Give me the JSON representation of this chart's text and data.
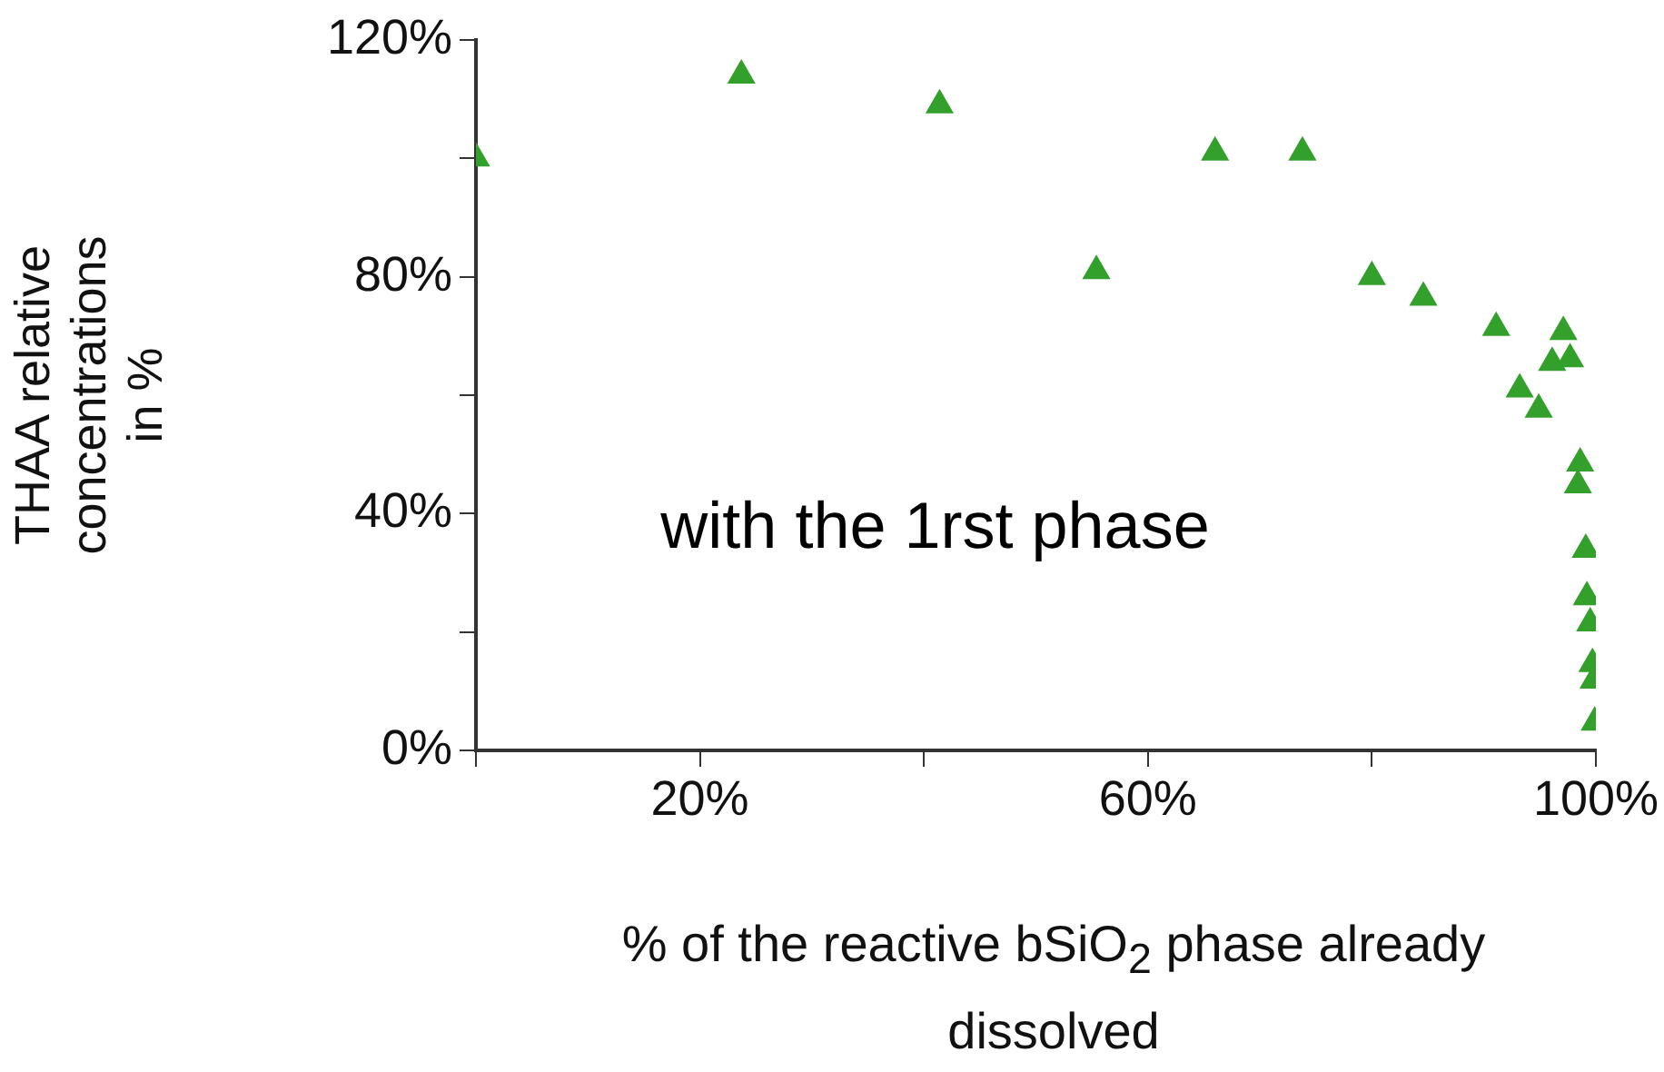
{
  "chart_data": {
    "type": "scatter",
    "xlabel": "% of the reactive bSiO$_{2}$ phase already dissolved",
    "ylabel": "THAA relative\nconcentrations\nin %",
    "annotations": [
      "with the 1rst phase"
    ],
    "x": [
      0,
      23.7,
      41.4,
      55.4,
      66,
      73.8,
      80,
      84.6,
      91.1,
      97.1,
      96.1,
      97.7,
      93.2,
      94.9,
      98.6,
      98.4,
      99.1,
      99.2,
      99.5,
      99.7,
      99.8,
      99.9
    ],
    "series": [
      {
        "color": "#33a02c",
        "values": [
          100,
          114,
          109,
          81,
          101,
          101,
          80,
          76.5,
          71.4,
          70.7,
          65.5,
          66.1,
          61,
          57.6,
          48.5,
          44.8,
          33.9,
          25.9,
          21.5,
          14.6,
          11.8,
          4.7
        ]
      }
    ],
    "xlim": [
      0,
      100
    ],
    "xticks": [
      {
        "value": 0,
        "label": null
      },
      {
        "value": 20,
        "label": "20%"
      },
      {
        "value": 40,
        "label": null
      },
      {
        "value": 60,
        "label": "60%"
      },
      {
        "value": 80,
        "label": null
      },
      {
        "value": 100,
        "label": "100%"
      }
    ],
    "ylim": [
      0,
      120
    ],
    "yticks": [
      {
        "value": 0,
        "label": "0%"
      },
      {
        "value": 20,
        "label": null
      },
      {
        "value": 40,
        "label": "40%"
      },
      {
        "value": 60,
        "label": null
      },
      {
        "value": 80,
        "label": "80%"
      },
      {
        "value": 100,
        "label": null
      },
      {
        "value": 120,
        "label": "120%"
      }
    ],
    "grid": false,
    "legend": false,
    "marker": "triangle"
  }
}
